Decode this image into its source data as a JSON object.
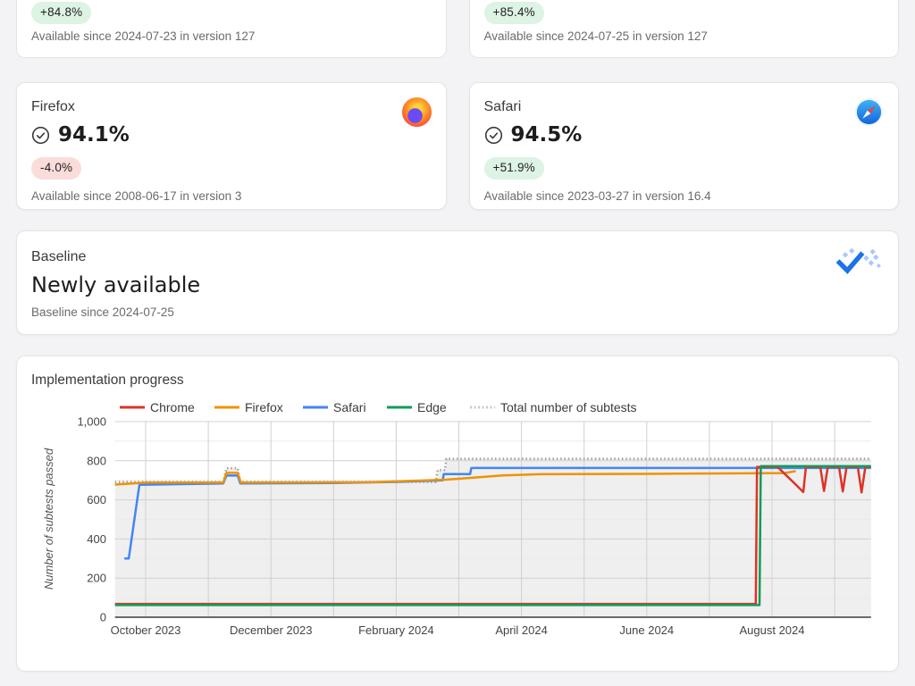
{
  "colors": {
    "page_bg": "#f3f3f5",
    "card_border": "#e4e4e8",
    "positive_badge_bg": "#ddf3e4",
    "negative_badge_bg": "#fadcdb",
    "baseline_icon_blue": "#1a73e8",
    "baseline_icon_dot_blue": "#a8c7fa"
  },
  "icons": {
    "score_icon": "check-circle",
    "firefox": "firefox-logo",
    "safari": "safari-logo",
    "baseline": "baseline-check-icon"
  },
  "partial_cards": [
    {
      "badge": "+84.8%",
      "badge_type": "positive",
      "availability": "Available since 2024-07-23 in version 127"
    },
    {
      "badge": "+85.4%",
      "badge_type": "positive",
      "availability": "Available since 2024-07-25 in version 127"
    }
  ],
  "browser_cards": [
    {
      "name": "Firefox",
      "score": "94.1%",
      "badge": "-4.0%",
      "badge_type": "negative",
      "availability": "Available since 2008-06-17 in version 3"
    },
    {
      "name": "Safari",
      "score": "94.5%",
      "badge": "+51.9%",
      "badge_type": "positive",
      "availability": "Available since 2023-03-27 in version 16.4"
    }
  ],
  "baseline_card": {
    "label": "Baseline",
    "status": "Newly available",
    "since": "Baseline since 2024-07-25"
  },
  "chart_data": {
    "type": "line",
    "title": "Implementation progress",
    "ylabel": "Number of subtests passed",
    "ylim": [
      0,
      1000
    ],
    "y_ticks": [
      0,
      200,
      400,
      600,
      800,
      1000
    ],
    "y_minor_gridlines": [
      100,
      300,
      500,
      700,
      900
    ],
    "x_unit": "months since 2023-10-01",
    "x_range": [
      -0.49,
      11.58
    ],
    "x_month_gridlines": [
      0,
      1,
      2,
      3,
      4,
      5,
      6,
      7,
      8,
      9,
      10,
      11
    ],
    "x_ticks": [
      {
        "m": 0,
        "label": "October 2023"
      },
      {
        "m": 2,
        "label": "December 2023"
      },
      {
        "m": 4,
        "label": "February 2024"
      },
      {
        "m": 6,
        "label": "April 2024"
      },
      {
        "m": 8,
        "label": "June 2024"
      },
      {
        "m": 10,
        "label": "August 2024"
      }
    ],
    "legend_position": "top",
    "legend_order": [
      "Chrome",
      "Firefox",
      "Safari",
      "Edge",
      "Total number of subtests"
    ],
    "draw_order": [
      "Total number of subtests",
      "Safari",
      "Firefox",
      "Chrome",
      "Edge"
    ],
    "series": [
      {
        "name": "Total number of subtests",
        "color": "#9e9e9e",
        "style": "dotted",
        "area_fill": "#efefef",
        "points": [
          [
            -0.49,
            692
          ],
          [
            1.24,
            692
          ],
          [
            1.29,
            762
          ],
          [
            1.47,
            762
          ],
          [
            1.51,
            692
          ],
          [
            4.63,
            692
          ],
          [
            4.66,
            752
          ],
          [
            4.78,
            752
          ],
          [
            4.8,
            810
          ],
          [
            11.58,
            810
          ]
        ]
      },
      {
        "name": "Chrome",
        "color": "#dd3327",
        "points": [
          [
            -0.49,
            68
          ],
          [
            9.74,
            68
          ],
          [
            9.76,
            768
          ],
          [
            10.09,
            768
          ],
          [
            10.5,
            640
          ],
          [
            10.54,
            768
          ],
          [
            10.77,
            768
          ],
          [
            10.83,
            645
          ],
          [
            10.89,
            768
          ],
          [
            11.07,
            768
          ],
          [
            11.13,
            643
          ],
          [
            11.19,
            768
          ],
          [
            11.37,
            768
          ],
          [
            11.43,
            638
          ],
          [
            11.49,
            768
          ],
          [
            11.58,
            768
          ]
        ]
      },
      {
        "name": "Firefox",
        "color": "#ef9200",
        "points": [
          [
            -0.49,
            678
          ],
          [
            0,
            688
          ],
          [
            1.24,
            688
          ],
          [
            1.29,
            738
          ],
          [
            1.47,
            738
          ],
          [
            1.52,
            688
          ],
          [
            3.6,
            690
          ],
          [
            4.8,
            703
          ],
          [
            5.7,
            725
          ],
          [
            6.3,
            731
          ],
          [
            8.0,
            733
          ],
          [
            9.3,
            735
          ],
          [
            10.2,
            737
          ],
          [
            10.38,
            747
          ]
        ]
      },
      {
        "name": "Safari",
        "color": "#4285f4",
        "points": [
          [
            -0.34,
            300
          ],
          [
            -0.27,
            300
          ],
          [
            -0.1,
            677
          ],
          [
            1.24,
            684
          ],
          [
            1.29,
            724
          ],
          [
            1.47,
            724
          ],
          [
            1.51,
            684
          ],
          [
            3.0,
            686
          ],
          [
            4.0,
            692
          ],
          [
            4.6,
            698
          ],
          [
            4.74,
            700
          ],
          [
            4.76,
            732
          ],
          [
            5.18,
            732
          ],
          [
            5.2,
            763
          ],
          [
            11.58,
            763
          ]
        ]
      },
      {
        "name": "Edge",
        "color": "#0f9d58",
        "points": [
          [
            -0.49,
            62
          ],
          [
            9.8,
            62
          ],
          [
            9.82,
            772
          ],
          [
            11.58,
            772
          ]
        ]
      }
    ]
  }
}
